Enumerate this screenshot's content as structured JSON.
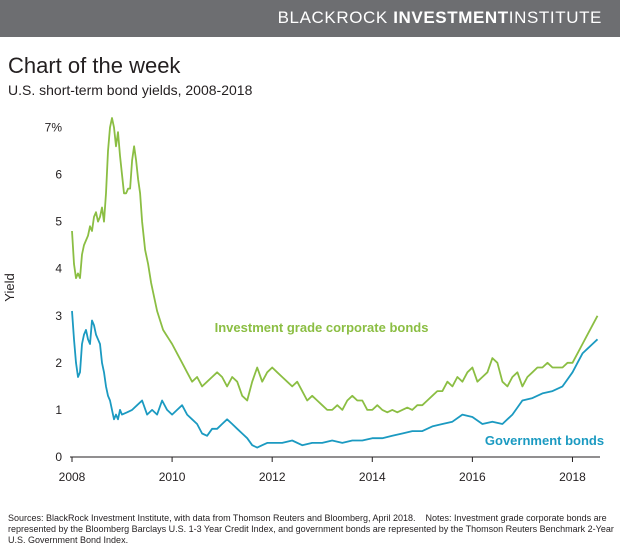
{
  "header": {
    "brand_light": "BLACKROCK",
    "brand_bold": "INVESTMENT",
    "brand_rest": "INSTITUTE",
    "title": "Chart of the week",
    "subtitle": "U.S. short-term bond yields, 2008-2018"
  },
  "colors": {
    "brand_bar": "#6d6e71",
    "corporate": "#8bbe43",
    "government": "#1b9ac1",
    "axis": "#231f20"
  },
  "chart_data": {
    "type": "line",
    "title": "Chart of the week",
    "subtitle": "U.S. short-term bond yields, 2008-2018",
    "xlabel": "",
    "ylabel": "Yield",
    "xlim": [
      2008,
      2018.55
    ],
    "ylim": [
      0,
      7.2
    ],
    "x_ticks": [
      "2008",
      "2010",
      "2012",
      "2014",
      "2016",
      "2018"
    ],
    "y_ticks": [
      "0",
      "1",
      "2",
      "3",
      "4",
      "5",
      "6",
      "7%"
    ],
    "grid": false,
    "series": [
      {
        "name": "Investment grade corporate bonds",
        "color": "#8bbe43",
        "x": [
          2008.0,
          2008.04,
          2008.08,
          2008.12,
          2008.16,
          2008.2,
          2008.24,
          2008.28,
          2008.32,
          2008.36,
          2008.4,
          2008.44,
          2008.48,
          2008.52,
          2008.56,
          2008.6,
          2008.64,
          2008.68,
          2008.72,
          2008.76,
          2008.8,
          2008.84,
          2008.88,
          2008.92,
          2008.96,
          2009.0,
          2009.04,
          2009.08,
          2009.12,
          2009.16,
          2009.2,
          2009.24,
          2009.28,
          2009.32,
          2009.36,
          2009.4,
          2009.46,
          2009.52,
          2009.58,
          2009.64,
          2009.7,
          2009.76,
          2009.82,
          2009.88,
          2009.94,
          2010.0,
          2010.1,
          2010.2,
          2010.3,
          2010.4,
          2010.5,
          2010.6,
          2010.7,
          2010.8,
          2010.9,
          2011.0,
          2011.1,
          2011.2,
          2011.3,
          2011.4,
          2011.5,
          2011.6,
          2011.7,
          2011.8,
          2011.9,
          2012.0,
          2012.1,
          2012.2,
          2012.3,
          2012.4,
          2012.5,
          2012.6,
          2012.7,
          2012.8,
          2012.9,
          2013.0,
          2013.1,
          2013.2,
          2013.3,
          2013.4,
          2013.5,
          2013.6,
          2013.7,
          2013.8,
          2013.9,
          2014.0,
          2014.1,
          2014.2,
          2014.3,
          2014.4,
          2014.5,
          2014.6,
          2014.7,
          2014.8,
          2014.9,
          2015.0,
          2015.1,
          2015.2,
          2015.3,
          2015.4,
          2015.5,
          2015.6,
          2015.7,
          2015.8,
          2015.9,
          2016.0,
          2016.1,
          2016.2,
          2016.3,
          2016.4,
          2016.5,
          2016.6,
          2016.7,
          2016.8,
          2016.9,
          2017.0,
          2017.1,
          2017.2,
          2017.3,
          2017.4,
          2017.5,
          2017.6,
          2017.7,
          2017.8,
          2017.9,
          2018.0,
          2018.1,
          2018.2,
          2018.3,
          2018.4,
          2018.5
        ],
        "values": [
          4.8,
          4.1,
          3.8,
          3.9,
          3.8,
          4.3,
          4.5,
          4.6,
          4.7,
          4.9,
          4.8,
          5.1,
          5.2,
          5.0,
          5.1,
          5.3,
          5.0,
          5.6,
          6.5,
          7.0,
          7.2,
          7.0,
          6.6,
          6.9,
          6.4,
          6.0,
          5.6,
          5.6,
          5.7,
          5.7,
          6.3,
          6.6,
          6.3,
          5.9,
          5.6,
          5.0,
          4.4,
          4.1,
          3.7,
          3.4,
          3.1,
          2.9,
          2.7,
          2.6,
          2.5,
          2.4,
          2.2,
          2.0,
          1.8,
          1.6,
          1.7,
          1.5,
          1.6,
          1.7,
          1.8,
          1.7,
          1.5,
          1.7,
          1.6,
          1.3,
          1.2,
          1.6,
          1.9,
          1.6,
          1.8,
          1.9,
          1.8,
          1.7,
          1.6,
          1.5,
          1.6,
          1.4,
          1.2,
          1.3,
          1.2,
          1.1,
          1.0,
          1.0,
          1.1,
          1.0,
          1.2,
          1.3,
          1.2,
          1.2,
          1.0,
          1.0,
          1.1,
          1.0,
          0.95,
          1.0,
          0.95,
          1.0,
          1.05,
          1.0,
          1.1,
          1.1,
          1.2,
          1.3,
          1.4,
          1.4,
          1.6,
          1.5,
          1.7,
          1.6,
          1.8,
          1.9,
          1.6,
          1.7,
          1.8,
          2.1,
          2.0,
          1.6,
          1.5,
          1.7,
          1.8,
          1.5,
          1.7,
          1.8,
          1.9,
          1.9,
          2.0,
          1.9,
          1.9,
          1.9,
          2.0,
          2.0,
          2.2,
          2.4,
          2.6,
          2.8,
          3.0
        ]
      },
      {
        "name": "Government bonds",
        "color": "#1b9ac1",
        "x": [
          2008.0,
          2008.04,
          2008.08,
          2008.12,
          2008.16,
          2008.2,
          2008.24,
          2008.28,
          2008.32,
          2008.36,
          2008.4,
          2008.44,
          2008.48,
          2008.52,
          2008.56,
          2008.6,
          2008.64,
          2008.68,
          2008.72,
          2008.76,
          2008.8,
          2008.84,
          2008.88,
          2008.92,
          2008.96,
          2009.0,
          2009.1,
          2009.2,
          2009.3,
          2009.4,
          2009.5,
          2009.6,
          2009.7,
          2009.8,
          2009.9,
          2010.0,
          2010.1,
          2010.2,
          2010.3,
          2010.4,
          2010.5,
          2010.6,
          2010.7,
          2010.8,
          2010.9,
          2011.0,
          2011.1,
          2011.2,
          2011.3,
          2011.4,
          2011.5,
          2011.6,
          2011.7,
          2011.8,
          2011.9,
          2012.0,
          2012.2,
          2012.4,
          2012.6,
          2012.8,
          2013.0,
          2013.2,
          2013.4,
          2013.6,
          2013.8,
          2014.0,
          2014.2,
          2014.4,
          2014.6,
          2014.8,
          2015.0,
          2015.2,
          2015.4,
          2015.6,
          2015.8,
          2016.0,
          2016.2,
          2016.4,
          2016.6,
          2016.8,
          2017.0,
          2017.2,
          2017.4,
          2017.6,
          2017.8,
          2018.0,
          2018.1,
          2018.2,
          2018.3,
          2018.4,
          2018.5
        ],
        "values": [
          3.1,
          2.5,
          2.0,
          1.7,
          1.8,
          2.4,
          2.6,
          2.7,
          2.5,
          2.4,
          2.9,
          2.8,
          2.6,
          2.5,
          2.4,
          2.0,
          1.8,
          1.5,
          1.3,
          1.2,
          1.0,
          0.8,
          0.9,
          0.8,
          1.0,
          0.9,
          0.95,
          1.0,
          1.1,
          1.2,
          0.9,
          1.0,
          0.9,
          1.2,
          1.0,
          0.9,
          1.0,
          1.1,
          0.9,
          0.8,
          0.7,
          0.5,
          0.45,
          0.6,
          0.6,
          0.7,
          0.8,
          0.7,
          0.6,
          0.5,
          0.4,
          0.25,
          0.2,
          0.25,
          0.3,
          0.3,
          0.3,
          0.35,
          0.25,
          0.3,
          0.3,
          0.35,
          0.3,
          0.35,
          0.35,
          0.4,
          0.4,
          0.45,
          0.5,
          0.55,
          0.55,
          0.65,
          0.7,
          0.75,
          0.9,
          0.85,
          0.7,
          0.75,
          0.7,
          0.9,
          1.2,
          1.25,
          1.35,
          1.4,
          1.5,
          1.8,
          2.0,
          2.2,
          2.3,
          2.4,
          2.5
        ]
      }
    ],
    "annotations": [
      {
        "text": "Investment grade corporate bonds",
        "series": "Investment grade corporate bonds",
        "x": 2010.85,
        "y": 2.65
      },
      {
        "text": "Government bonds",
        "series": "Government bonds",
        "x": 2016.25,
        "y": 0.25
      }
    ]
  },
  "notes": {
    "sources": "Sources: BlackRock Investment Institute, with data from Thomson Reuters and Bloomberg, April 2018.",
    "notes": "Notes: Investment grade corporate bonds are represented by the Bloomberg Barclays U.S. 1-3 Year Credit Index, and government bonds are represented by the Thomson Reuters Benchmark 2-Year U.S. Government Bond Index."
  }
}
